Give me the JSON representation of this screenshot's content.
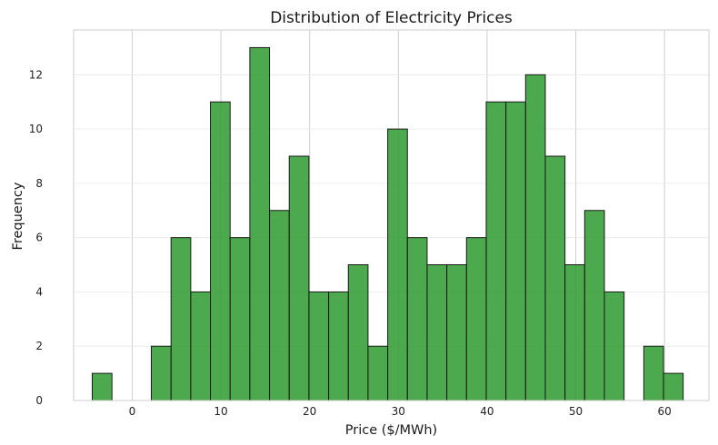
{
  "chart_data": {
    "type": "bar",
    "subtype": "histogram",
    "title": "Distribution of Electricity Prices",
    "xlabel": "Price ($/MWh)",
    "ylabel": "Frequency",
    "xlim": [
      -6.6,
      65.0
    ],
    "ylim": [
      0,
      13.65
    ],
    "xticks": [
      0,
      10,
      20,
      30,
      40,
      50,
      60
    ],
    "yticks": [
      0,
      2,
      4,
      6,
      8,
      10,
      12
    ],
    "grid": true,
    "bin_start": -4.5,
    "bin_width": 2.22,
    "counts": [
      1,
      0,
      0,
      2,
      6,
      4,
      11,
      6,
      13,
      7,
      9,
      4,
      4,
      5,
      2,
      10,
      6,
      5,
      5,
      6,
      11,
      11,
      12,
      9,
      5,
      7,
      4,
      0,
      2,
      1
    ],
    "bar_color": "#2e9a2e",
    "edge_color": "#1a1a1a"
  }
}
